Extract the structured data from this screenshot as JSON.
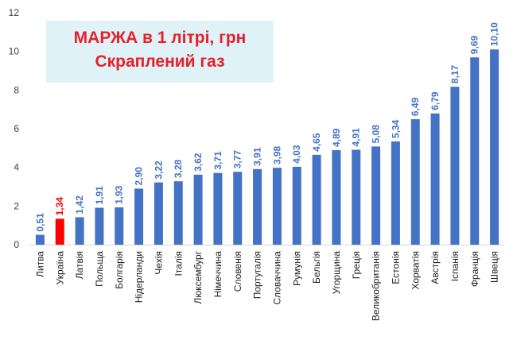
{
  "chart_data": {
    "type": "bar",
    "title_line1": "МАРЖА в 1 літрі, грн",
    "title_line2": "Скраплений газ",
    "categories": [
      "Литва",
      "Україна",
      "Латвія",
      "Польща",
      "Болгарія",
      "Нідерланди",
      "Чехія",
      "Італія",
      "Люксембург",
      "Німеччина",
      "Словенія",
      "Португалія",
      "Словаччина",
      "Румунія",
      "Бельгія",
      "Угорщина",
      "Греція",
      "Великобританія",
      "Естонія",
      "Хорватія",
      "Австрія",
      "Іспанія",
      "Франція",
      "Швеція"
    ],
    "values": [
      0.51,
      1.34,
      1.42,
      1.91,
      1.93,
      2.9,
      3.22,
      3.28,
      3.62,
      3.71,
      3.77,
      3.91,
      3.98,
      4.03,
      4.65,
      4.89,
      4.91,
      5.08,
      5.34,
      6.49,
      6.79,
      8.17,
      9.69,
      10.1
    ],
    "value_labels": [
      "0,51",
      "1,34",
      "1,42",
      "1,91",
      "1,93",
      "2,90",
      "3,22",
      "3,28",
      "3,62",
      "3,71",
      "3,77",
      "3,91",
      "3,98",
      "4,03",
      "4,65",
      "4,89",
      "4,91",
      "5,08",
      "5,34",
      "6,49",
      "6,79",
      "8,17",
      "9,69",
      "10,10"
    ],
    "highlight_category": "Україна",
    "ylim": [
      0,
      12
    ],
    "yticks": [
      "0",
      "2",
      "4",
      "6",
      "8",
      "10",
      "12"
    ],
    "grid": false,
    "colors": {
      "bar": "#4472c4",
      "highlight": "#ff0000",
      "label": "#4472c4",
      "highlight_label": "#ff0000",
      "title": "#e8202a",
      "title_bg": "#dff2f8"
    }
  }
}
